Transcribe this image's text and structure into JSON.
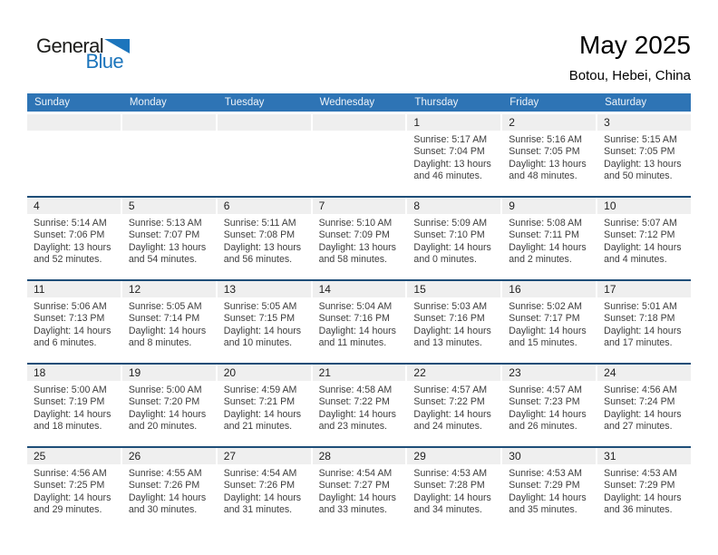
{
  "logo": {
    "part1": "General",
    "part2": "Blue"
  },
  "header": {
    "title": "May 2025",
    "location": "Botou, Hebei, China"
  },
  "colors": {
    "header_bar": "#2e74b5",
    "week_separator": "#1e4e78",
    "day_number_band": "#efefef",
    "logo_blue": "#1c75bc"
  },
  "day_headers": [
    "Sunday",
    "Monday",
    "Tuesday",
    "Wednesday",
    "Thursday",
    "Friday",
    "Saturday"
  ],
  "weeks": [
    {
      "days": [
        {
          "num": "",
          "sunrise": "",
          "sunset": "",
          "daylight1": "",
          "daylight2": ""
        },
        {
          "num": "",
          "sunrise": "",
          "sunset": "",
          "daylight1": "",
          "daylight2": ""
        },
        {
          "num": "",
          "sunrise": "",
          "sunset": "",
          "daylight1": "",
          "daylight2": ""
        },
        {
          "num": "",
          "sunrise": "",
          "sunset": "",
          "daylight1": "",
          "daylight2": ""
        },
        {
          "num": "1",
          "sunrise": "Sunrise: 5:17 AM",
          "sunset": "Sunset: 7:04 PM",
          "daylight1": "Daylight: 13 hours",
          "daylight2": "and 46 minutes."
        },
        {
          "num": "2",
          "sunrise": "Sunrise: 5:16 AM",
          "sunset": "Sunset: 7:05 PM",
          "daylight1": "Daylight: 13 hours",
          "daylight2": "and 48 minutes."
        },
        {
          "num": "3",
          "sunrise": "Sunrise: 5:15 AM",
          "sunset": "Sunset: 7:05 PM",
          "daylight1": "Daylight: 13 hours",
          "daylight2": "and 50 minutes."
        }
      ]
    },
    {
      "days": [
        {
          "num": "4",
          "sunrise": "Sunrise: 5:14 AM",
          "sunset": "Sunset: 7:06 PM",
          "daylight1": "Daylight: 13 hours",
          "daylight2": "and 52 minutes."
        },
        {
          "num": "5",
          "sunrise": "Sunrise: 5:13 AM",
          "sunset": "Sunset: 7:07 PM",
          "daylight1": "Daylight: 13 hours",
          "daylight2": "and 54 minutes."
        },
        {
          "num": "6",
          "sunrise": "Sunrise: 5:11 AM",
          "sunset": "Sunset: 7:08 PM",
          "daylight1": "Daylight: 13 hours",
          "daylight2": "and 56 minutes."
        },
        {
          "num": "7",
          "sunrise": "Sunrise: 5:10 AM",
          "sunset": "Sunset: 7:09 PM",
          "daylight1": "Daylight: 13 hours",
          "daylight2": "and 58 minutes."
        },
        {
          "num": "8",
          "sunrise": "Sunrise: 5:09 AM",
          "sunset": "Sunset: 7:10 PM",
          "daylight1": "Daylight: 14 hours",
          "daylight2": "and 0 minutes."
        },
        {
          "num": "9",
          "sunrise": "Sunrise: 5:08 AM",
          "sunset": "Sunset: 7:11 PM",
          "daylight1": "Daylight: 14 hours",
          "daylight2": "and 2 minutes."
        },
        {
          "num": "10",
          "sunrise": "Sunrise: 5:07 AM",
          "sunset": "Sunset: 7:12 PM",
          "daylight1": "Daylight: 14 hours",
          "daylight2": "and 4 minutes."
        }
      ]
    },
    {
      "days": [
        {
          "num": "11",
          "sunrise": "Sunrise: 5:06 AM",
          "sunset": "Sunset: 7:13 PM",
          "daylight1": "Daylight: 14 hours",
          "daylight2": "and 6 minutes."
        },
        {
          "num": "12",
          "sunrise": "Sunrise: 5:05 AM",
          "sunset": "Sunset: 7:14 PM",
          "daylight1": "Daylight: 14 hours",
          "daylight2": "and 8 minutes."
        },
        {
          "num": "13",
          "sunrise": "Sunrise: 5:05 AM",
          "sunset": "Sunset: 7:15 PM",
          "daylight1": "Daylight: 14 hours",
          "daylight2": "and 10 minutes."
        },
        {
          "num": "14",
          "sunrise": "Sunrise: 5:04 AM",
          "sunset": "Sunset: 7:16 PM",
          "daylight1": "Daylight: 14 hours",
          "daylight2": "and 11 minutes."
        },
        {
          "num": "15",
          "sunrise": "Sunrise: 5:03 AM",
          "sunset": "Sunset: 7:16 PM",
          "daylight1": "Daylight: 14 hours",
          "daylight2": "and 13 minutes."
        },
        {
          "num": "16",
          "sunrise": "Sunrise: 5:02 AM",
          "sunset": "Sunset: 7:17 PM",
          "daylight1": "Daylight: 14 hours",
          "daylight2": "and 15 minutes."
        },
        {
          "num": "17",
          "sunrise": "Sunrise: 5:01 AM",
          "sunset": "Sunset: 7:18 PM",
          "daylight1": "Daylight: 14 hours",
          "daylight2": "and 17 minutes."
        }
      ]
    },
    {
      "days": [
        {
          "num": "18",
          "sunrise": "Sunrise: 5:00 AM",
          "sunset": "Sunset: 7:19 PM",
          "daylight1": "Daylight: 14 hours",
          "daylight2": "and 18 minutes."
        },
        {
          "num": "19",
          "sunrise": "Sunrise: 5:00 AM",
          "sunset": "Sunset: 7:20 PM",
          "daylight1": "Daylight: 14 hours",
          "daylight2": "and 20 minutes."
        },
        {
          "num": "20",
          "sunrise": "Sunrise: 4:59 AM",
          "sunset": "Sunset: 7:21 PM",
          "daylight1": "Daylight: 14 hours",
          "daylight2": "and 21 minutes."
        },
        {
          "num": "21",
          "sunrise": "Sunrise: 4:58 AM",
          "sunset": "Sunset: 7:22 PM",
          "daylight1": "Daylight: 14 hours",
          "daylight2": "and 23 minutes."
        },
        {
          "num": "22",
          "sunrise": "Sunrise: 4:57 AM",
          "sunset": "Sunset: 7:22 PM",
          "daylight1": "Daylight: 14 hours",
          "daylight2": "and 24 minutes."
        },
        {
          "num": "23",
          "sunrise": "Sunrise: 4:57 AM",
          "sunset": "Sunset: 7:23 PM",
          "daylight1": "Daylight: 14 hours",
          "daylight2": "and 26 minutes."
        },
        {
          "num": "24",
          "sunrise": "Sunrise: 4:56 AM",
          "sunset": "Sunset: 7:24 PM",
          "daylight1": "Daylight: 14 hours",
          "daylight2": "and 27 minutes."
        }
      ]
    },
    {
      "days": [
        {
          "num": "25",
          "sunrise": "Sunrise: 4:56 AM",
          "sunset": "Sunset: 7:25 PM",
          "daylight1": "Daylight: 14 hours",
          "daylight2": "and 29 minutes."
        },
        {
          "num": "26",
          "sunrise": "Sunrise: 4:55 AM",
          "sunset": "Sunset: 7:26 PM",
          "daylight1": "Daylight: 14 hours",
          "daylight2": "and 30 minutes."
        },
        {
          "num": "27",
          "sunrise": "Sunrise: 4:54 AM",
          "sunset": "Sunset: 7:26 PM",
          "daylight1": "Daylight: 14 hours",
          "daylight2": "and 31 minutes."
        },
        {
          "num": "28",
          "sunrise": "Sunrise: 4:54 AM",
          "sunset": "Sunset: 7:27 PM",
          "daylight1": "Daylight: 14 hours",
          "daylight2": "and 33 minutes."
        },
        {
          "num": "29",
          "sunrise": "Sunrise: 4:53 AM",
          "sunset": "Sunset: 7:28 PM",
          "daylight1": "Daylight: 14 hours",
          "daylight2": "and 34 minutes."
        },
        {
          "num": "30",
          "sunrise": "Sunrise: 4:53 AM",
          "sunset": "Sunset: 7:29 PM",
          "daylight1": "Daylight: 14 hours",
          "daylight2": "and 35 minutes."
        },
        {
          "num": "31",
          "sunrise": "Sunrise: 4:53 AM",
          "sunset": "Sunset: 7:29 PM",
          "daylight1": "Daylight: 14 hours",
          "daylight2": "and 36 minutes."
        }
      ]
    }
  ]
}
